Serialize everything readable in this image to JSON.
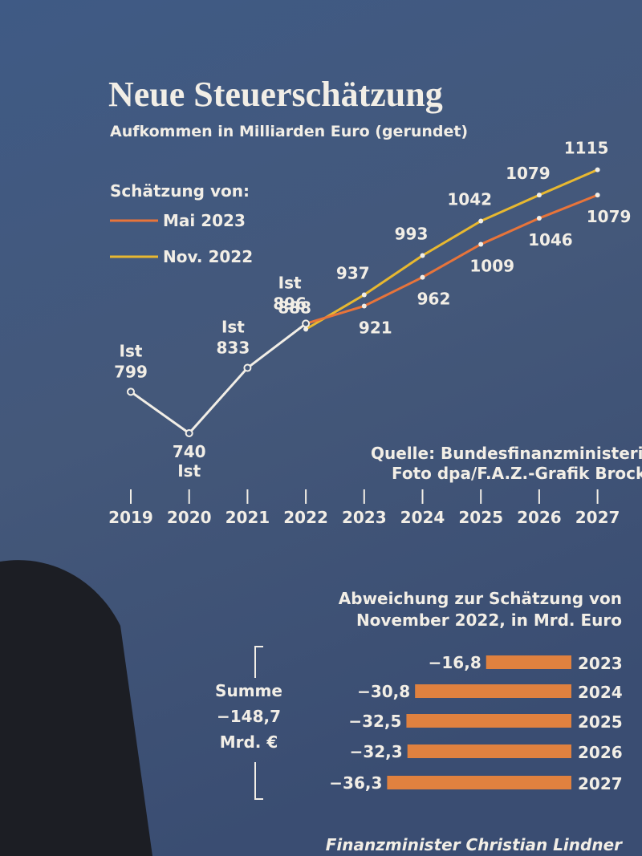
{
  "chart_data": [
    {
      "type": "line",
      "title": "Neue Steuerschätzung",
      "subtitle": "Aufkommen in Milliarden Euro (gerundet)",
      "legend_title": "Schätzung von:",
      "categories": [
        "2019",
        "2020",
        "2021",
        "2022",
        "2023",
        "2024",
        "2025",
        "2026",
        "2027"
      ],
      "actual": {
        "label": "Ist",
        "color": "#f2eee6",
        "values": [
          799,
          740,
          833,
          896,
          null,
          null,
          null,
          null,
          null
        ]
      },
      "series": [
        {
          "name": "Mai 2023",
          "color": "#e8743a",
          "values": [
            null,
            null,
            null,
            896,
            921,
            962,
            1009,
            1046,
            1079
          ]
        },
        {
          "name": "Nov. 2022",
          "color": "#e8b830",
          "values": [
            null,
            null,
            null,
            888,
            937,
            993,
            1042,
            1079,
            1115
          ]
        }
      ],
      "ylim": [
        700,
        1150
      ],
      "source": [
        "Quelle: Bundesfinanzministerium",
        "Foto dpa/F.A.Z.-Grafik Brocker"
      ]
    },
    {
      "type": "hbar",
      "title": [
        "Abweichung zur Schätzung von",
        "November 2022, in Mrd. Euro"
      ],
      "categories": [
        "2023",
        "2024",
        "2025",
        "2026",
        "2027"
      ],
      "values": [
        -16.8,
        -30.8,
        -32.5,
        -32.3,
        -36.3
      ],
      "value_labels": [
        "−16,8",
        "−30,8",
        "−32,5",
        "−32,3",
        "−36,3"
      ],
      "color": "#e0813f",
      "xlim": [
        -40,
        0
      ],
      "annotation": [
        "Summe",
        "−148,7",
        "Mrd. €"
      ]
    }
  ],
  "caption": "Finanzminister Christian Lindner"
}
